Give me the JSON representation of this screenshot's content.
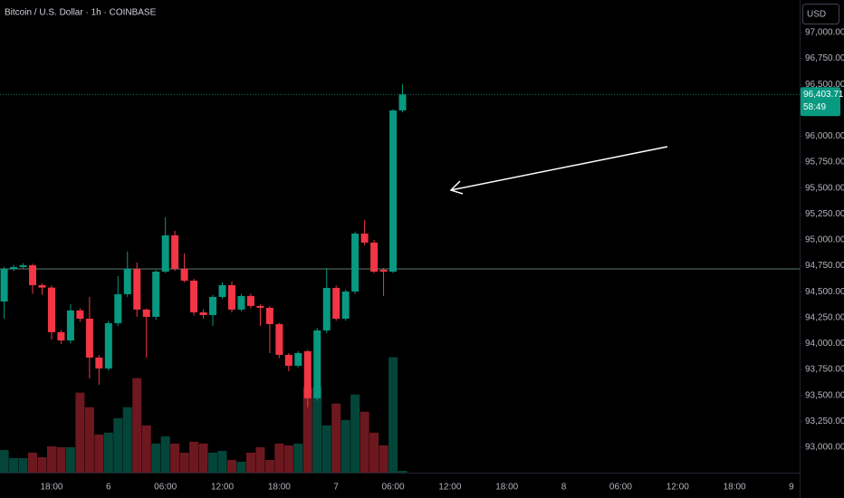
{
  "chart_data": {
    "type": "candlestick",
    "title": "Bitcoin / U.S. Dollar · 1h · COINBASE",
    "currency": "USD",
    "categories": [
      null,
      null,
      null,
      null,
      null,
      "18:00",
      null,
      null,
      null,
      null,
      null,
      "6",
      null,
      null,
      null,
      null,
      null,
      "06:00",
      null,
      null,
      null,
      null,
      null,
      "12:00",
      null,
      null,
      null,
      null,
      null,
      "18:00",
      null,
      null,
      null,
      null,
      null,
      "7",
      null,
      null,
      null,
      null,
      null,
      "06:00",
      null,
      null,
      null,
      null,
      null,
      "12:00",
      null,
      null,
      null,
      null,
      null,
      "18:00",
      null,
      null,
      null,
      null,
      null,
      "8",
      null,
      null,
      null,
      null,
      null,
      "06:00",
      null,
      null,
      null,
      null,
      null,
      "12:00",
      null,
      null,
      null,
      null,
      null,
      "18:00",
      null,
      null,
      null,
      null,
      null,
      "9"
    ],
    "open": [
      94406,
      94720,
      94738,
      94756,
      94563,
      94540,
      94110,
      94030,
      94320,
      94240,
      93865,
      93760,
      94197,
      94476,
      94721,
      94328,
      94258,
      94694,
      95044,
      94721,
      94607,
      94301,
      94275,
      94450,
      94563,
      94328,
      94459,
      94363,
      94345,
      94188,
      93891,
      93786,
      93926,
      93472,
      94127,
      94537,
      94240,
      94502,
      95061,
      94974,
      94712,
      94694,
      96249,
      null,
      null,
      null,
      null,
      null,
      null,
      null,
      null,
      null,
      null,
      null,
      null,
      null,
      null,
      null,
      null,
      null,
      null,
      null,
      null,
      null,
      null,
      null,
      null,
      null,
      null,
      null,
      null,
      null,
      null,
      null,
      null,
      null,
      null,
      null,
      null,
      null,
      null,
      null,
      null,
      null
    ],
    "high": [
      94740,
      94760,
      94775,
      94770,
      94580,
      94560,
      94130,
      94380,
      94340,
      94450,
      93890,
      94220,
      94651,
      94887,
      94782,
      94340,
      94710,
      95218,
      95087,
      94869,
      94625,
      94330,
      94470,
      94590,
      94600,
      94480,
      94480,
      94380,
      94360,
      94200,
      93908,
      93926,
      93940,
      94150,
      94729,
      94560,
      94520,
      95080,
      95192,
      95000,
      94730,
      96260,
      96500,
      null,
      null,
      null,
      null,
      null,
      null,
      null,
      null,
      null,
      null,
      null,
      null,
      null,
      null,
      null,
      null,
      null,
      null,
      null,
      null,
      null,
      null,
      null,
      null,
      null,
      null,
      null,
      null,
      null,
      null,
      null,
      null,
      null,
      null,
      null,
      null,
      null,
      null,
      null,
      null,
      null
    ],
    "low": [
      94240,
      94700,
      94720,
      94480,
      94470,
      94039,
      93996,
      94000,
      94210,
      93664,
      93603,
      93740,
      94170,
      94450,
      94258,
      93865,
      94230,
      94680,
      94700,
      94590,
      94270,
      94240,
      94170,
      94430,
      94300,
      94310,
      94340,
      94170,
      93908,
      93860,
      93734,
      93770,
      93384,
      93450,
      94100,
      94220,
      94220,
      94480,
      94950,
      94680,
      94459,
      94680,
      96230,
      null,
      null,
      null,
      null,
      null,
      null,
      null,
      null,
      null,
      null,
      null,
      null,
      null,
      null,
      null,
      null,
      null,
      null,
      null,
      null,
      null,
      null,
      null,
      null,
      null,
      null,
      null,
      null,
      null,
      null,
      null,
      null,
      null,
      null,
      null,
      null,
      null,
      null,
      null,
      null,
      null
    ],
    "close": [
      94721,
      94738,
      94756,
      94563,
      94540,
      94110,
      94030,
      94320,
      94240,
      93865,
      93760,
      94197,
      94476,
      94721,
      94328,
      94258,
      94694,
      95044,
      94721,
      94607,
      94301,
      94275,
      94450,
      94563,
      94328,
      94459,
      94363,
      94345,
      94188,
      93891,
      93786,
      93908,
      93472,
      94127,
      94537,
      94240,
      94502,
      95061,
      94974,
      94694,
      94694,
      96249,
      96403.71,
      null,
      null,
      null,
      null,
      null,
      null,
      null,
      null,
      null,
      null,
      null,
      null,
      null,
      null,
      null,
      null,
      null,
      null,
      null,
      null,
      null,
      null,
      null,
      null,
      null,
      null,
      null,
      null,
      null,
      null,
      null,
      null,
      null,
      null,
      null,
      null,
      null,
      null,
      null,
      null,
      null
    ],
    "volume": [
      25,
      16,
      16,
      22,
      17,
      29,
      28,
      28,
      88,
      72,
      42,
      44,
      60,
      72,
      104,
      52,
      32,
      40,
      32,
      22,
      34,
      32,
      22,
      24,
      14,
      12,
      22,
      28,
      14,
      32,
      30,
      32,
      94,
      94,
      52,
      76,
      58,
      86,
      67,
      44,
      30,
      127,
      2,
      null,
      null,
      null,
      null,
      null,
      null,
      null,
      null,
      null,
      null,
      null,
      null,
      null,
      null,
      null,
      null,
      null,
      null,
      null,
      null,
      null,
      null,
      null,
      null,
      null,
      null,
      null,
      null,
      null,
      null,
      null,
      null,
      null,
      null,
      null,
      null,
      null,
      null,
      null,
      null,
      null
    ],
    "vlim": [
      0,
      520
    ],
    "up_color": "#089981",
    "down_color": "#f23645",
    "ylim": [
      92755,
      97314
    ],
    "yticks": [
      {
        "value": 93000,
        "label": "93,000.00"
      },
      {
        "value": 93250,
        "label": "93,250.00"
      },
      {
        "value": 93500,
        "label": "93,500.00"
      },
      {
        "value": 93750,
        "label": "93,750.00"
      },
      {
        "value": 94000,
        "label": "94,000.00"
      },
      {
        "value": 94250,
        "label": "94,250.00"
      },
      {
        "value": 94500,
        "label": "94,500.00"
      },
      {
        "value": 94750,
        "label": "94,750.00"
      },
      {
        "value": 95000,
        "label": "95,000.00"
      },
      {
        "value": 95250,
        "label": "95,250.00"
      },
      {
        "value": 95500,
        "label": "95,500.00"
      },
      {
        "value": 95750,
        "label": "95,750.00"
      },
      {
        "value": 96000,
        "label": "96,000.00"
      },
      {
        "value": 96500,
        "label": "96,500.00"
      },
      {
        "value": 96750,
        "label": "96,750.00"
      },
      {
        "value": 97000,
        "label": "97,000.00"
      }
    ],
    "grid": false,
    "horizontal_line": 94720,
    "last_price_label": "96,403.71",
    "countdown": "58:49"
  }
}
